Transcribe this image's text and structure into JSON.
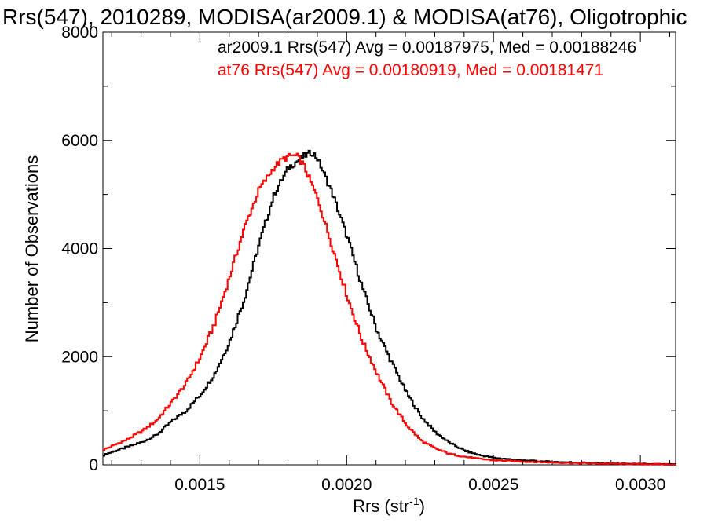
{
  "chart_data": {
    "type": "histogram-step",
    "title": "Rrs(547), 2010289, MODISA(ar2009.1) & MODISA(at76), Oligotrophic",
    "xlabel": "Rrs (str",
    "xlabel_sup": "-1",
    "xlabel_end": ")",
    "ylabel": "Number of Observations",
    "xlim": [
      0.00117,
      0.00312
    ],
    "ylim": [
      0,
      8000
    ],
    "xticks": [
      0.0015,
      0.002,
      0.0025,
      0.003
    ],
    "xtick_labels": [
      "0.0015",
      "0.0020",
      "0.0025",
      "0.0030"
    ],
    "yticks": [
      0,
      2000,
      4000,
      6000,
      8000
    ],
    "ytick_labels": [
      "0",
      "2000",
      "4000",
      "6000",
      "8000"
    ],
    "grid": false,
    "legend": {
      "placement": "top-right",
      "entries": [
        {
          "text": "ar2009.1 Rrs(547) Avg = 0.00187975, Med = 0.00188246",
          "color": "#000000"
        },
        {
          "text": "at76 Rrs(547) Avg = 0.00180919, Med = 0.00181471",
          "color": "#ff0000"
        }
      ]
    },
    "series": [
      {
        "name": "ar2009.1",
        "color": "#000000",
        "points": [
          [
            0.00117,
            180
          ],
          [
            0.0012,
            240
          ],
          [
            0.00125,
            330
          ],
          [
            0.0013,
            420
          ],
          [
            0.00135,
            550
          ],
          [
            0.0014,
            800
          ],
          [
            0.00145,
            1000
          ],
          [
            0.0015,
            1300
          ],
          [
            0.00155,
            1700
          ],
          [
            0.0016,
            2300
          ],
          [
            0.00165,
            3100
          ],
          [
            0.0017,
            4100
          ],
          [
            0.00175,
            5000
          ],
          [
            0.0018,
            5500
          ],
          [
            0.00185,
            5700
          ],
          [
            0.00188,
            5780
          ],
          [
            0.0019,
            5650
          ],
          [
            0.00195,
            5000
          ],
          [
            0.002,
            4200
          ],
          [
            0.00205,
            3300
          ],
          [
            0.0021,
            2500
          ],
          [
            0.00215,
            1900
          ],
          [
            0.0022,
            1350
          ],
          [
            0.00225,
            900
          ],
          [
            0.0023,
            600
          ],
          [
            0.00235,
            400
          ],
          [
            0.0024,
            260
          ],
          [
            0.00245,
            180
          ],
          [
            0.0025,
            130
          ],
          [
            0.0026,
            80
          ],
          [
            0.0027,
            55
          ],
          [
            0.0028,
            40
          ],
          [
            0.0029,
            25
          ],
          [
            0.003,
            15
          ],
          [
            0.00312,
            5
          ]
        ]
      },
      {
        "name": "at76",
        "color": "#ff0000",
        "points": [
          [
            0.00117,
            280
          ],
          [
            0.0012,
            350
          ],
          [
            0.00125,
            470
          ],
          [
            0.0013,
            620
          ],
          [
            0.00135,
            820
          ],
          [
            0.0014,
            1150
          ],
          [
            0.00145,
            1500
          ],
          [
            0.0015,
            2000
          ],
          [
            0.00155,
            2650
          ],
          [
            0.0016,
            3500
          ],
          [
            0.00165,
            4400
          ],
          [
            0.0017,
            5100
          ],
          [
            0.00175,
            5500
          ],
          [
            0.00178,
            5650
          ],
          [
            0.00181,
            5720
          ],
          [
            0.00183,
            5700
          ],
          [
            0.00185,
            5550
          ],
          [
            0.0019,
            4900
          ],
          [
            0.00195,
            4000
          ],
          [
            0.002,
            3100
          ],
          [
            0.00205,
            2300
          ],
          [
            0.0021,
            1700
          ],
          [
            0.00215,
            1150
          ],
          [
            0.0022,
            750
          ],
          [
            0.00225,
            450
          ],
          [
            0.0023,
            300
          ],
          [
            0.00235,
            200
          ],
          [
            0.0024,
            150
          ],
          [
            0.00245,
            110
          ],
          [
            0.0025,
            85
          ],
          [
            0.0026,
            60
          ],
          [
            0.0027,
            42
          ],
          [
            0.0028,
            30
          ],
          [
            0.0029,
            20
          ],
          [
            0.003,
            12
          ],
          [
            0.00312,
            5
          ]
        ]
      }
    ]
  }
}
